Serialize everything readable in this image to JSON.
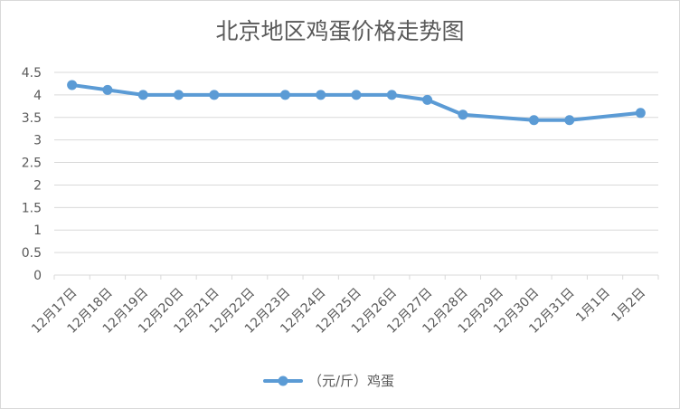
{
  "chart_data": {
    "type": "line",
    "title": "北京地区鸡蛋价格走势图",
    "xlabel": "",
    "ylabel": "",
    "categories": [
      "12月17日",
      "12月18日",
      "12月19日",
      "12月20日",
      "12月21日",
      "12月22日",
      "12月23日",
      "12月24日",
      "12月25日",
      "12月26日",
      "12月27日",
      "12月28日",
      "12月29日",
      "12月30日",
      "12月31日",
      "1月1日",
      "1月2日"
    ],
    "series": [
      {
        "name": "（元/斤）鸡蛋",
        "values": [
          4.22,
          4.11,
          4.0,
          4.0,
          4.0,
          null,
          4.0,
          4.0,
          4.0,
          4.0,
          3.89,
          3.56,
          null,
          3.44,
          3.44,
          null,
          3.6
        ]
      }
    ],
    "yticks": [
      "0",
      "0.5",
      "1",
      "1.5",
      "2",
      "2.5",
      "3",
      "3.5",
      "4",
      "4.5"
    ],
    "ylim": [
      0,
      4.5
    ],
    "grid": "y-major",
    "legend_position": "bottom",
    "colors": {
      "series": "#5B9BD5",
      "grid": "#D9D9D9",
      "text": "#595959",
      "border": "#D9D9D9"
    }
  }
}
